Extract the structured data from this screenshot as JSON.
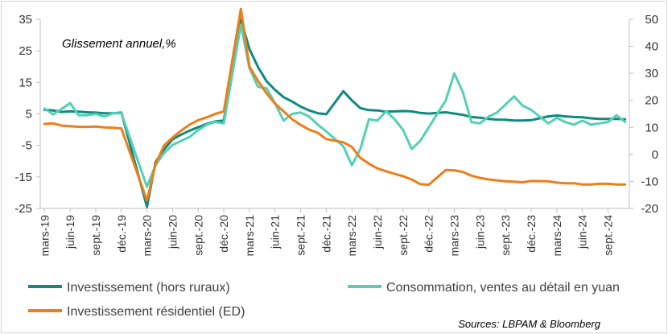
{
  "chart_data": {
    "type": "line",
    "annotation": "Glissement annuel,%",
    "source": "Sources: LBPAM & Bloomberg",
    "x": [
      "2019-03",
      "2019-04",
      "2019-05",
      "2019-06",
      "2019-07",
      "2019-08",
      "2019-09",
      "2019-10",
      "2019-11",
      "2019-12",
      "2020-01",
      "2020-02",
      "2020-03",
      "2020-04",
      "2020-05",
      "2020-06",
      "2020-07",
      "2020-08",
      "2020-09",
      "2020-10",
      "2020-11",
      "2020-12",
      "2021-01",
      "2021-02",
      "2021-03",
      "2021-04",
      "2021-05",
      "2021-06",
      "2021-07",
      "2021-08",
      "2021-09",
      "2021-10",
      "2021-11",
      "2021-12",
      "2022-01",
      "2022-02",
      "2022-03",
      "2022-04",
      "2022-05",
      "2022-06",
      "2022-07",
      "2022-08",
      "2022-09",
      "2022-10",
      "2022-11",
      "2022-12",
      "2023-01",
      "2023-02",
      "2023-03",
      "2023-04",
      "2023-05",
      "2023-06",
      "2023-07",
      "2023-08",
      "2023-09",
      "2023-10",
      "2023-11",
      "2023-12",
      "2024-01",
      "2024-02",
      "2024-03",
      "2024-04",
      "2024-05",
      "2024-06",
      "2024-07",
      "2024-08",
      "2024-09",
      "2024-10",
      "2024-11"
    ],
    "x_tick_labels": [
      {
        "x": "2019-03",
        "label": "mars-19"
      },
      {
        "x": "2019-06",
        "label": "juin-19"
      },
      {
        "x": "2019-09",
        "label": "sept.-19"
      },
      {
        "x": "2019-12",
        "label": "déc.-19"
      },
      {
        "x": "2020-03",
        "label": "mars-20"
      },
      {
        "x": "2020-06",
        "label": "juin-20"
      },
      {
        "x": "2020-09",
        "label": "sept.-20"
      },
      {
        "x": "2020-12",
        "label": "déc.-20"
      },
      {
        "x": "2021-03",
        "label": "mars-21"
      },
      {
        "x": "2021-06",
        "label": "juin-21"
      },
      {
        "x": "2021-09",
        "label": "sept.-21"
      },
      {
        "x": "2021-12",
        "label": "déc.-21"
      },
      {
        "x": "2022-03",
        "label": "mars-22"
      },
      {
        "x": "2022-06",
        "label": "juin-22"
      },
      {
        "x": "2022-09",
        "label": "sept.-22"
      },
      {
        "x": "2022-12",
        "label": "déc.-22"
      },
      {
        "x": "2023-03",
        "label": "mars-23"
      },
      {
        "x": "2023-06",
        "label": "juin-23"
      },
      {
        "x": "2023-09",
        "label": "sept.-23"
      },
      {
        "x": "2023-12",
        "label": "déc.-23"
      },
      {
        "x": "2024-03",
        "label": "mars-24"
      },
      {
        "x": "2024-06",
        "label": "juin-24"
      },
      {
        "x": "2024-09",
        "label": "sept.-24"
      }
    ],
    "y_left": {
      "min": -25,
      "max": 35,
      "ticks": [
        "35",
        "25",
        "15",
        "5",
        "-5",
        "-15",
        "-25"
      ]
    },
    "y_right": {
      "min": -20,
      "max": 50,
      "ticks": [
        "50",
        "40",
        "30",
        "20",
        "10",
        "0",
        "-10",
        "-20"
      ]
    },
    "grid": false,
    "legend_position": "bottom",
    "series": [
      {
        "name": "Investissement (hors ruraux)",
        "axis": "left",
        "color": "#0f8a80",
        "values": [
          6.3,
          6.1,
          5.6,
          5.8,
          5.7,
          5.5,
          5.4,
          5.2,
          5.2,
          5.4,
          null,
          null,
          -24.5,
          -10.3,
          -6.3,
          -3.1,
          -1.6,
          -0.3,
          0.8,
          1.8,
          2.6,
          2.9,
          null,
          35.0,
          25.6,
          19.9,
          15.4,
          12.6,
          10.3,
          8.9,
          7.3,
          6.1,
          5.2,
          4.9,
          null,
          12.2,
          9.3,
          6.8,
          6.2,
          6.1,
          5.7,
          5.8,
          5.9,
          5.8,
          5.3,
          5.1,
          null,
          5.5,
          5.1,
          4.7,
          4.0,
          3.8,
          3.4,
          3.2,
          3.1,
          2.9,
          2.9,
          3.0,
          null,
          4.2,
          4.5,
          4.2,
          4.0,
          3.9,
          3.6,
          3.4,
          3.4,
          3.4,
          3.3
        ]
      },
      {
        "name": "Consommation, ventes au détail en yuan",
        "axis": "right",
        "color": "#55d0b4",
        "values": [
          17.0,
          14.8,
          16.8,
          19.0,
          14.5,
          14.5,
          15.0,
          14.0,
          15.2,
          15.2,
          null,
          null,
          -12.0,
          -4.0,
          0.5,
          3.5,
          5.0,
          6.5,
          9.0,
          11.0,
          12.0,
          11.5,
          null,
          48.0,
          32.0,
          25.0,
          24.5,
          19.0,
          12.5,
          15.0,
          15.5,
          14.0,
          11.0,
          8.5,
          null,
          3.0,
          -4.0,
          2.0,
          13.0,
          12.5,
          16.0,
          13.0,
          9.0,
          2.0,
          5.0,
          10.0,
          null,
          20.0,
          30.0,
          23.0,
          12.0,
          11.5,
          14.0,
          15.5,
          18.5,
          21.5,
          18.0,
          16.5,
          null,
          11.5,
          13.5,
          12.0,
          11.0,
          12.5,
          11.0,
          11.5,
          12.0,
          14.5,
          12.0
        ]
      },
      {
        "name": "Investissement résidentiel (ED)",
        "axis": "left",
        "color": "#ef7d1a",
        "values": [
          1.8,
          2.0,
          1.3,
          1.1,
          0.9,
          0.9,
          1.0,
          0.7,
          0.6,
          0.4,
          null,
          null,
          -22.5,
          -11.0,
          -5.0,
          -2.5,
          -0.3,
          1.6,
          3.0,
          3.9,
          5.0,
          5.8,
          null,
          38.3,
          20.0,
          15.5,
          11.5,
          8.3,
          5.8,
          3.3,
          1.5,
          0.0,
          -1.0,
          -3.0,
          null,
          -4.0,
          -5.5,
          -9.0,
          -10.8,
          -12.3,
          -13.2,
          -14.0,
          -14.8,
          -15.8,
          -17.3,
          -17.5,
          null,
          -12.8,
          -12.9,
          -13.4,
          -14.6,
          -15.3,
          -15.8,
          -16.1,
          -16.4,
          -16.5,
          -16.7,
          -16.3,
          null,
          -16.4,
          -16.8,
          -17.0,
          -17.0,
          -17.4,
          -17.4,
          -17.2,
          -17.2,
          -17.4,
          -17.4
        ]
      }
    ]
  }
}
